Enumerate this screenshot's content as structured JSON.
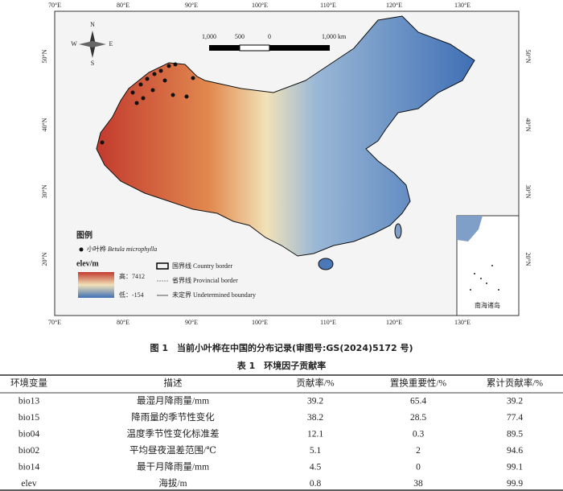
{
  "map": {
    "lon_labels": [
      "70°E",
      "80°E",
      "90°E",
      "100°E",
      "110°E",
      "120°E",
      "130°E"
    ],
    "lat_labels": [
      "50°N",
      "40°N",
      "30°N",
      "20°N"
    ],
    "compass": [
      "N",
      "S",
      "W",
      "E"
    ],
    "scale_labels": [
      "1,000",
      "500",
      "0",
      "1,000 km"
    ],
    "legend": {
      "title": "图例",
      "species_cn": "小叶桦",
      "species_latin": "Betula microphylla",
      "elev_title": "elev/m",
      "high": "高：7412",
      "low": "低：-154",
      "country_border": "国界线 Country border",
      "provincial_border": "省界线 Provincial border",
      "undetermined_boundary": "未定界 Undetermined boundary"
    },
    "inset_label": "南海诸岛"
  },
  "figure_caption": "图 1　当前小叶桦在中国的分布记录(审图号:GS(2024)5172 号)",
  "table": {
    "caption": "表 1　环境因子贡献率",
    "header": [
      "环境变量",
      "描述",
      "贡献率/%",
      "置换重要性/%",
      "累计贡献率/%"
    ],
    "rows": [
      [
        "bio13",
        "最湿月降雨量/mm",
        "39.2",
        "65.4",
        "39.2"
      ],
      [
        "bio15",
        "降雨量的季节性变化",
        "38.2",
        "28.5",
        "77.4"
      ],
      [
        "bio04",
        "温度季节性变化标准差",
        "12.1",
        "0.3",
        "89.5"
      ],
      [
        "bio02",
        "平均昼夜温差范围/℃",
        "5.1",
        "2",
        "94.6"
      ],
      [
        "bio14",
        "最干月降雨量/mm",
        "4.5",
        "0",
        "99.1"
      ],
      [
        "elev",
        "海拔/m",
        "0.8",
        "38",
        "99.9"
      ]
    ]
  }
}
